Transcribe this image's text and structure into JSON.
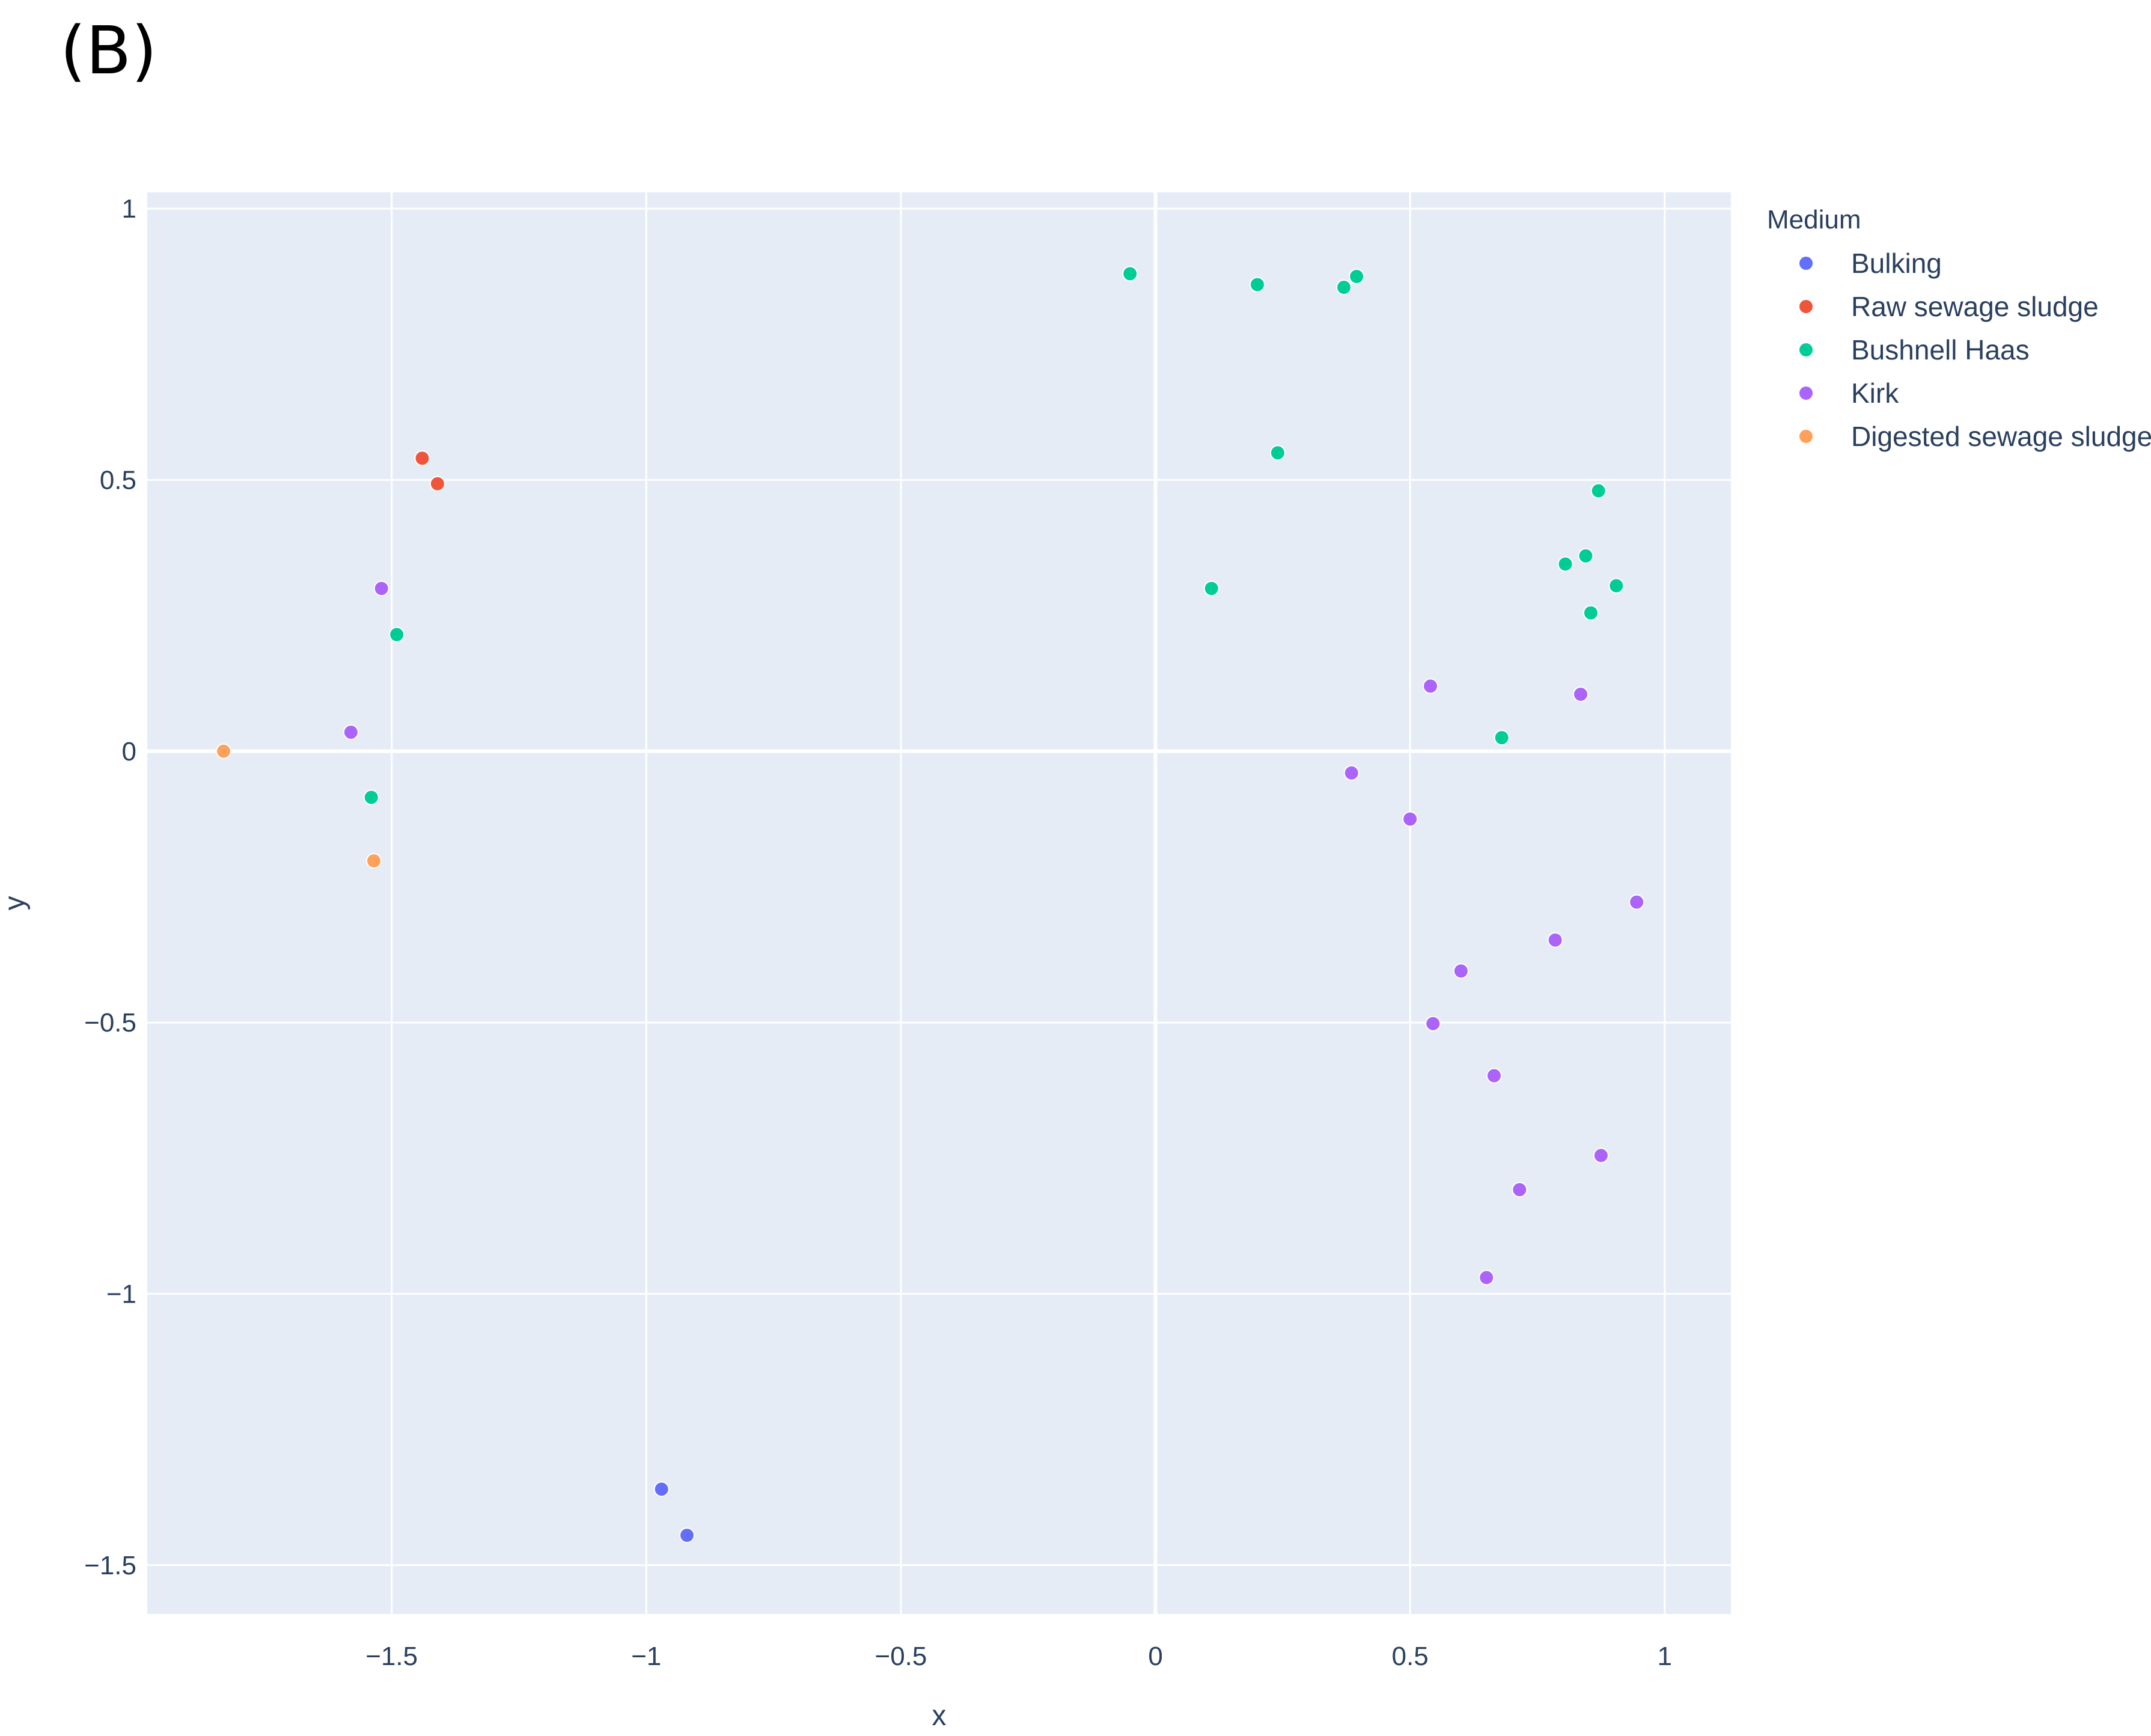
{
  "panel_label": "(B)",
  "chart_data": {
    "type": "scatter",
    "title": "",
    "xlabel": "x",
    "ylabel": "y",
    "xlim": [
      -1.98,
      1.13
    ],
    "ylim": [
      -1.59,
      1.03
    ],
    "x_ticks": [
      -1.5,
      -1,
      -0.5,
      0,
      0.5,
      1
    ],
    "x_tick_labels": [
      "−1.5",
      "−1",
      "−0.5",
      "0",
      "0.5",
      "1"
    ],
    "y_ticks": [
      1,
      0.5,
      0,
      -0.5,
      -1,
      -1.5
    ],
    "y_tick_labels": [
      "1",
      "0.5",
      "0",
      "−0.5",
      "−1",
      "−1.5"
    ],
    "grid": true,
    "plot_background": "#e5ecf6",
    "grid_color": "#ffffff",
    "legend": {
      "title": "Medium",
      "placement": "right"
    },
    "series": [
      {
        "name": "Bulking",
        "color": "#636efa",
        "points": [
          [
            -0.97,
            -1.36
          ],
          [
            -0.92,
            -1.445
          ]
        ]
      },
      {
        "name": "Raw sewage sludge",
        "color": "#ef553b",
        "points": [
          [
            -1.44,
            0.54
          ],
          [
            -1.41,
            0.493
          ]
        ]
      },
      {
        "name": "Bushnell Haas",
        "color": "#00cc96",
        "points": [
          [
            -0.05,
            0.88
          ],
          [
            0.2,
            0.86
          ],
          [
            0.37,
            0.855
          ],
          [
            0.395,
            0.875
          ],
          [
            0.24,
            0.55
          ],
          [
            0.11,
            0.3
          ],
          [
            0.87,
            0.48
          ],
          [
            0.845,
            0.36
          ],
          [
            0.805,
            0.345
          ],
          [
            0.905,
            0.305
          ],
          [
            0.855,
            0.255
          ],
          [
            0.68,
            0.025
          ],
          [
            -1.49,
            0.215
          ],
          [
            -1.54,
            -0.085
          ]
        ]
      },
      {
        "name": "Kirk",
        "color": "#ab63fa",
        "points": [
          [
            -1.52,
            0.3
          ],
          [
            -1.58,
            0.035
          ],
          [
            0.54,
            0.12
          ],
          [
            0.835,
            0.105
          ],
          [
            0.385,
            -0.04
          ],
          [
            0.5,
            -0.125
          ],
          [
            0.945,
            -0.278
          ],
          [
            0.785,
            -0.348
          ],
          [
            0.6,
            -0.405
          ],
          [
            0.545,
            -0.502
          ],
          [
            0.665,
            -0.598
          ],
          [
            0.875,
            -0.745
          ],
          [
            0.715,
            -0.808
          ],
          [
            0.65,
            -0.97
          ]
        ]
      },
      {
        "name": "Digested sewage sludge",
        "color": "#ffa15a",
        "points": [
          [
            -1.83,
            0.0
          ],
          [
            -1.535,
            -0.202
          ]
        ]
      }
    ]
  }
}
